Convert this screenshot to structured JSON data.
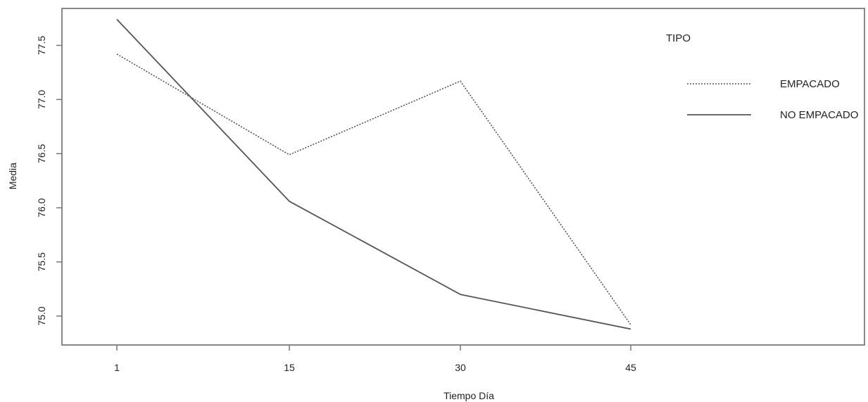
{
  "chart_data": {
    "type": "line",
    "title": "",
    "xlabel": "Tiempo Día",
    "ylabel": "Media",
    "categories": [
      "1",
      "15",
      "30",
      "45"
    ],
    "ylim": [
      74.85,
      77.75
    ],
    "yticks": [
      "75.0",
      "75.5",
      "76.0",
      "76.5",
      "77.0",
      "77.5"
    ],
    "grid": false,
    "legend": {
      "title": "TIPO",
      "placement": "top-right"
    },
    "series": [
      {
        "name": "EMPACADO",
        "values": [
          77.42,
          76.49,
          77.17,
          74.92
        ],
        "line_style": "dotted",
        "color": "#555555"
      },
      {
        "name": "NO EMPACADO",
        "values": [
          77.74,
          76.06,
          75.2,
          74.88
        ],
        "line_style": "solid",
        "color": "#555555"
      }
    ]
  }
}
